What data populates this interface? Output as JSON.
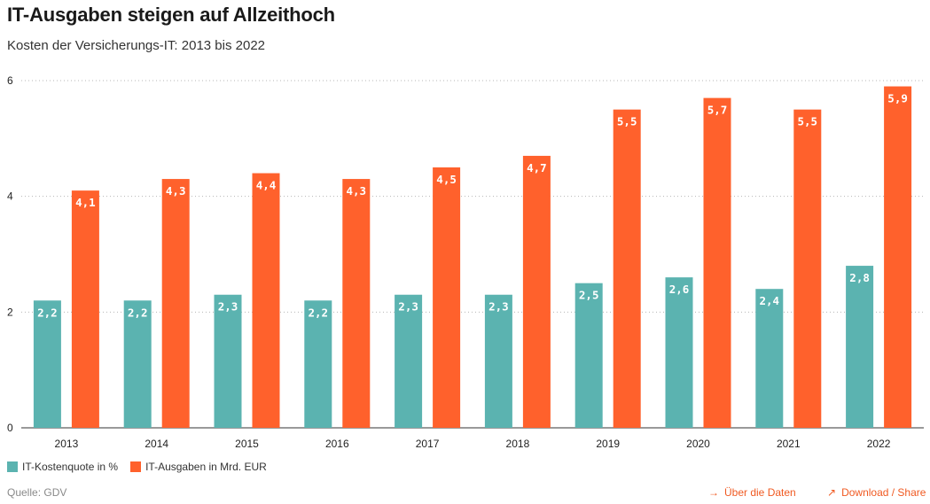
{
  "header": {
    "title": "IT-Ausgaben steigen auf Allzeithoch",
    "subtitle": "Kosten der Versicherungs-IT: 2013 bis 2022"
  },
  "footer": {
    "source": "Quelle: GDV",
    "data_link": "Über die Daten",
    "share_link": "Download / Share",
    "data_icon": "arrow-right-icon",
    "share_icon": "arrow-up-right-icon"
  },
  "chart_data": {
    "type": "bar",
    "categories": [
      "2013",
      "2014",
      "2015",
      "2016",
      "2017",
      "2018",
      "2019",
      "2020",
      "2021",
      "2022"
    ],
    "series": [
      {
        "name": "IT-Kostenquote in %",
        "color": "#5bb3b0",
        "values": [
          2.2,
          2.2,
          2.3,
          2.2,
          2.3,
          2.3,
          2.5,
          2.6,
          2.4,
          2.8
        ],
        "labels": [
          "2,2",
          "2,2",
          "2,3",
          "2,2",
          "2,3",
          "2,3",
          "2,5",
          "2,6",
          "2,4",
          "2,8"
        ]
      },
      {
        "name": "IT-Ausgaben in Mrd. EUR",
        "color": "#ff612c",
        "values": [
          4.1,
          4.3,
          4.4,
          4.3,
          4.5,
          4.7,
          5.5,
          5.7,
          5.5,
          5.9
        ],
        "labels": [
          "4,1",
          "4,3",
          "4,4",
          "4,3",
          "4,5",
          "4,7",
          "5,5",
          "5,7",
          "5,5",
          "5,9"
        ]
      }
    ],
    "yticks": [
      "0",
      "2",
      "4",
      "6"
    ],
    "ylim": [
      0,
      6
    ],
    "grid": true,
    "legend_position": "bottom-left"
  }
}
